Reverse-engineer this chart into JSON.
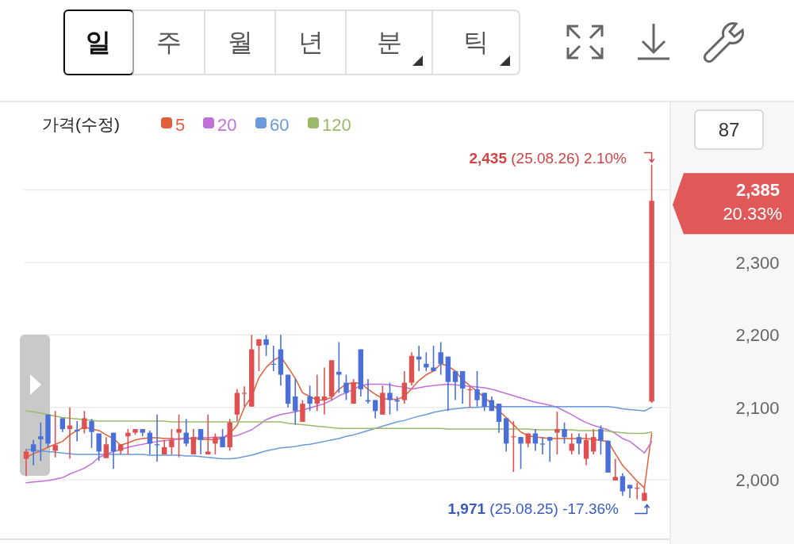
{
  "chart_data": {
    "type": "candlestick",
    "legend_title": "가격(수정)",
    "legend": "top left",
    "grid": "y",
    "tick_labels": "y",
    "categories": [
      null,
      null,
      null,
      null,
      null,
      null,
      null,
      null,
      null,
      null,
      null,
      null,
      null,
      null,
      null,
      null,
      null,
      null,
      null,
      null,
      null,
      null,
      null,
      null,
      null,
      null,
      null,
      null,
      null,
      null,
      null,
      null,
      null,
      null,
      null,
      null,
      null,
      null,
      null,
      null,
      null,
      null,
      null,
      null,
      null,
      null,
      null,
      null,
      null,
      null,
      null,
      null,
      null,
      null,
      null,
      null,
      null,
      null,
      null,
      null,
      null,
      null,
      null,
      null,
      null,
      null,
      null,
      null,
      null,
      null,
      null,
      null,
      null,
      null,
      null,
      null,
      null,
      null,
      null,
      null,
      null,
      null,
      null,
      null,
      null,
      null,
      null
    ],
    "ohlc": [
      [
        2029,
        2042,
        2005,
        2039
      ],
      [
        2049,
        2055,
        2020,
        2039
      ],
      [
        2060,
        2079,
        2026,
        2056
      ],
      [
        2090,
        2090,
        2045,
        2050
      ],
      [
        2040,
        2095,
        2031,
        2048
      ],
      [
        2085,
        2085,
        2066,
        2070
      ],
      [
        2070,
        2100,
        2029,
        2075
      ],
      [
        2069,
        2081,
        2053,
        2067
      ],
      [
        2070,
        2095,
        2064,
        2085
      ],
      [
        2081,
        2084,
        2044,
        2066
      ],
      [
        2064,
        2064,
        2026,
        2039
      ],
      [
        2030,
        2059,
        2030,
        2049
      ],
      [
        2065,
        2065,
        2015,
        2039
      ],
      [
        2040,
        2049,
        2035,
        2049
      ],
      [
        2060,
        2070,
        2035,
        2065
      ],
      [
        2065,
        2070,
        2062,
        2070
      ],
      [
        2070,
        2070,
        2060,
        2065
      ],
      [
        2065,
        2068,
        2035,
        2050
      ],
      [
        2049,
        2090,
        2025,
        2048
      ],
      [
        2035,
        2055,
        2035,
        2045
      ],
      [
        2045,
        2070,
        2035,
        2055
      ],
      [
        2065,
        2090,
        2031,
        2070
      ],
      [
        2065,
        2084,
        2046,
        2050
      ],
      [
        2035,
        2070,
        2035,
        2059
      ],
      [
        2070,
        2070,
        2035,
        2055
      ],
      [
        2035,
        2090,
        2035,
        2039
      ],
      [
        2050,
        2064,
        2035,
        2059
      ],
      [
        2059,
        2070,
        2045,
        2045
      ],
      [
        2045,
        2084,
        2040,
        2079
      ],
      [
        2090,
        2125,
        2081,
        2120
      ],
      [
        2119,
        2129,
        2101,
        2120
      ],
      [
        2101,
        2200,
        2101,
        2180
      ],
      [
        2185,
        2194,
        2150,
        2194
      ],
      [
        2194,
        2200,
        2171,
        2186
      ],
      [
        2160,
        2185,
        2150,
        2159
      ],
      [
        2180,
        2200,
        2130,
        2145
      ],
      [
        2145,
        2145,
        2100,
        2105
      ],
      [
        2115,
        2139,
        2076,
        2095
      ],
      [
        2080,
        2110,
        2080,
        2105
      ],
      [
        2115,
        2130,
        2095,
        2105
      ],
      [
        2105,
        2145,
        2095,
        2115
      ],
      [
        2110,
        2155,
        2090,
        2115
      ],
      [
        2115,
        2165,
        2110,
        2165
      ],
      [
        2149,
        2190,
        2120,
        2145
      ],
      [
        2134,
        2145,
        2110,
        2120
      ],
      [
        2105,
        2139,
        2105,
        2134
      ],
      [
        2180,
        2180,
        2115,
        2125
      ],
      [
        2110,
        2139,
        2105,
        2108
      ],
      [
        2110,
        2110,
        2085,
        2095
      ],
      [
        2090,
        2130,
        2090,
        2120
      ],
      [
        2120,
        2134,
        2090,
        2110
      ],
      [
        2110,
        2115,
        2095,
        2108
      ],
      [
        2110,
        2150,
        2105,
        2134
      ],
      [
        2134,
        2176,
        2130,
        2171
      ],
      [
        2170,
        2185,
        2150,
        2166
      ],
      [
        2160,
        2176,
        2150,
        2155
      ],
      [
        2155,
        2185,
        2150,
        2150
      ],
      [
        2176,
        2190,
        2145,
        2160
      ],
      [
        2170,
        2170,
        2095,
        2135
      ],
      [
        2150,
        2150,
        2110,
        2135
      ],
      [
        2150,
        2150,
        2105,
        2126
      ],
      [
        2124,
        2129,
        2100,
        2125
      ],
      [
        2125,
        2150,
        2101,
        2110
      ],
      [
        2120,
        2120,
        2095,
        2101
      ],
      [
        2110,
        2115,
        2095,
        2095
      ],
      [
        2105,
        2105,
        2065,
        2080
      ],
      [
        2085,
        2085,
        2039,
        2050
      ],
      [
        2059,
        2081,
        2011,
        2060
      ],
      [
        2059,
        2059,
        2015,
        2050
      ],
      [
        2050,
        2064,
        2045,
        2064
      ],
      [
        2064,
        2070,
        2040,
        2050
      ],
      [
        2050,
        2059,
        2035,
        2049
      ],
      [
        2059,
        2059,
        2025,
        2054
      ],
      [
        2065,
        2094,
        2035,
        2070
      ],
      [
        2070,
        2079,
        2050,
        2059
      ],
      [
        2040,
        2064,
        2035,
        2050
      ],
      [
        2059,
        2064,
        2035,
        2050
      ],
      [
        2029,
        2064,
        2020,
        2055
      ],
      [
        2039,
        2070,
        2035,
        2059
      ],
      [
        2070,
        2075,
        2035,
        2054
      ],
      [
        2054,
        2054,
        2010,
        2010
      ],
      [
        1999,
        2029,
        1999,
        2004
      ],
      [
        2005,
        2009,
        1978,
        1984
      ],
      [
        1993,
        1993,
        1975,
        1988
      ],
      [
        1988,
        1996,
        1973,
        1989
      ],
      [
        1971,
        1989,
        1971,
        1982
      ],
      [
        2108,
        2435,
        2106,
        2385
      ]
    ],
    "colors": [
      "#e05050",
      "#4a6fd6",
      "#4a6fd6",
      "#4a6fd6",
      "#e05050",
      "#4a6fd6",
      "#e05050",
      "#4a6fd6",
      "#e05050",
      "#4a6fd6",
      "#4a6fd6",
      "#e05050",
      "#4a6fd6",
      "#e05050",
      "#e05050",
      "#e05050",
      "#4a6fd6",
      "#4a6fd6",
      "#4a6fd6",
      "#e05050",
      "#e05050",
      "#e05050",
      "#4a6fd6",
      "#e05050",
      "#4a6fd6",
      "#e05050",
      "#e05050",
      "#4a6fd6",
      "#e05050",
      "#e05050",
      "#e05050",
      "#e05050",
      "#e05050",
      "#4a6fd6",
      "#4a6fd6",
      "#4a6fd6",
      "#4a6fd6",
      "#4a6fd6",
      "#e05050",
      "#4a6fd6",
      "#e05050",
      "#e05050",
      "#e05050",
      "#4a6fd6",
      "#4a6fd6",
      "#e05050",
      "#4a6fd6",
      "#4a6fd6",
      "#4a6fd6",
      "#e05050",
      "#4a6fd6",
      "#4a6fd6",
      "#e05050",
      "#e05050",
      "#4a6fd6",
      "#4a6fd6",
      "#4a6fd6",
      "#4a6fd6",
      "#4a6fd6",
      "#4a6fd6",
      "#4a6fd6",
      "#e05050",
      "#4a6fd6",
      "#4a6fd6",
      "#4a6fd6",
      "#4a6fd6",
      "#4a6fd6",
      "#e05050",
      "#4a6fd6",
      "#e05050",
      "#4a6fd6",
      "#4a6fd6",
      "#4a6fd6",
      "#e05050",
      "#4a6fd6",
      "#e05050",
      "#4a6fd6",
      "#e05050",
      "#e05050",
      "#4a6fd6",
      "#4a6fd6",
      "#e05050",
      "#4a6fd6",
      "#4a6fd6",
      "#e05050",
      "#e05050",
      "#e05050"
    ],
    "series": [
      {
        "name": "5",
        "type": "line",
        "color": "#e0603a",
        "values": [
          2031,
          2036,
          2040,
          2045,
          2049,
          2053,
          2062,
          2068,
          2073,
          2070,
          2068,
          2062,
          2057,
          2048,
          2051,
          2055,
          2057,
          2058,
          2058,
          2057,
          2057,
          2056,
          2057,
          2057,
          2056,
          2056,
          2055,
          2058,
          2064,
          2075,
          2100,
          2115,
          2141,
          2155,
          2165,
          2170,
          2155,
          2140,
          2120,
          2115,
          2110,
          2110,
          2114,
          2125,
          2132,
          2134,
          2133,
          2125,
          2118,
          2112,
          2111,
          2111,
          2115,
          2126,
          2137,
          2145,
          2150,
          2160,
          2157,
          2150,
          2138,
          2130,
          2122,
          2114,
          2105,
          2095,
          2086,
          2076,
          2066,
          2061,
          2059,
          2058,
          2057,
          2057,
          2057,
          2057,
          2057,
          2057,
          2056,
          2054,
          2053,
          2036,
          2020,
          2009,
          1998,
          1989,
          2064
        ]
      },
      {
        "name": "20",
        "type": "line",
        "color": "#c070d8",
        "values": [
          1996,
          1997,
          1998,
          1999,
          2001,
          2003,
          2008,
          2012,
          2016,
          2022,
          2031,
          2035,
          2039,
          2042,
          2045,
          2047,
          2049,
          2051,
          2053,
          2054,
          2055,
          2057,
          2057,
          2058,
          2058,
          2058,
          2059,
          2059,
          2060,
          2061,
          2065,
          2069,
          2076,
          2083,
          2087,
          2090,
          2092,
          2094,
          2096,
          2099,
          2102,
          2105,
          2110,
          2116,
          2120,
          2125,
          2130,
          2132,
          2132,
          2132,
          2131,
          2129,
          2128,
          2125,
          2127,
          2129,
          2130,
          2131,
          2132,
          2131,
          2130,
          2129,
          2128,
          2127,
          2125,
          2122,
          2119,
          2116,
          2113,
          2110,
          2107,
          2105,
          2103,
          2100,
          2095,
          2090,
          2084,
          2079,
          2075,
          2072,
          2069,
          2064,
          2057,
          2053,
          2045,
          2037,
          2053
        ]
      },
      {
        "name": "60",
        "type": "line",
        "color": "#6a9ad8",
        "values": [
          2042,
          2041,
          2040,
          2039,
          2038,
          2037,
          2036,
          2035,
          2035,
          2035,
          2035,
          2035,
          2035,
          2035,
          2035,
          2035,
          2035,
          2034,
          2034,
          2034,
          2034,
          2034,
          2033,
          2033,
          2032,
          2031,
          2030,
          2029,
          2029,
          2030,
          2032,
          2034,
          2037,
          2040,
          2042,
          2044,
          2045,
          2046,
          2048,
          2049,
          2051,
          2053,
          2055,
          2057,
          2060,
          2062,
          2065,
          2068,
          2071,
          2074,
          2077,
          2080,
          2082,
          2085,
          2088,
          2090,
          2093,
          2095,
          2097,
          2098,
          2099,
          2100,
          2100,
          2101,
          2101,
          2101,
          2101,
          2101,
          2101,
          2101,
          2101,
          2101,
          2101,
          2101,
          2101,
          2101,
          2101,
          2101,
          2101,
          2101,
          2101,
          2100,
          2098,
          2097,
          2096,
          2095,
          2100
        ]
      },
      {
        "name": "120",
        "type": "line",
        "color": "#9aba6a",
        "values": [
          2095,
          2094,
          2092,
          2090,
          2088,
          2086,
          2085,
          2084,
          2083,
          2082,
          2081,
          2081,
          2081,
          2081,
          2081,
          2081,
          2081,
          2081,
          2081,
          2081,
          2080,
          2080,
          2080,
          2080,
          2080,
          2080,
          2080,
          2080,
          2080,
          2080,
          2080,
          2080,
          2080,
          2080,
          2080,
          2080,
          2078,
          2077,
          2076,
          2075,
          2074,
          2073,
          2072,
          2071,
          2071,
          2071,
          2071,
          2071,
          2071,
          2071,
          2071,
          2071,
          2071,
          2071,
          2071,
          2071,
          2071,
          2071,
          2070,
          2070,
          2070,
          2070,
          2070,
          2070,
          2070,
          2070,
          2070,
          2070,
          2070,
          2070,
          2069,
          2069,
          2069,
          2069,
          2069,
          2069,
          2068,
          2068,
          2068,
          2068,
          2067,
          2066,
          2065,
          2064,
          2064,
          2064,
          2066
        ]
      }
    ],
    "ylim": [
      1918,
      2522
    ],
    "yticks": [
      {
        "value": 2000,
        "label": "2,000"
      },
      {
        "value": 2100,
        "label": "2,100"
      },
      {
        "value": 2200,
        "label": "2,200"
      },
      {
        "value": 2300,
        "label": "2,300"
      },
      {
        "value": 2400,
        "label": null
      }
    ],
    "annotations": [
      "일",
      "주",
      "월",
      "년",
      "분",
      "틱",
      "87",
      "**2,435** (25.08.26) 2.10%",
      "**1,971** (25.08.25) -17.36%",
      "**2,385**",
      "20.33%"
    ]
  }
}
